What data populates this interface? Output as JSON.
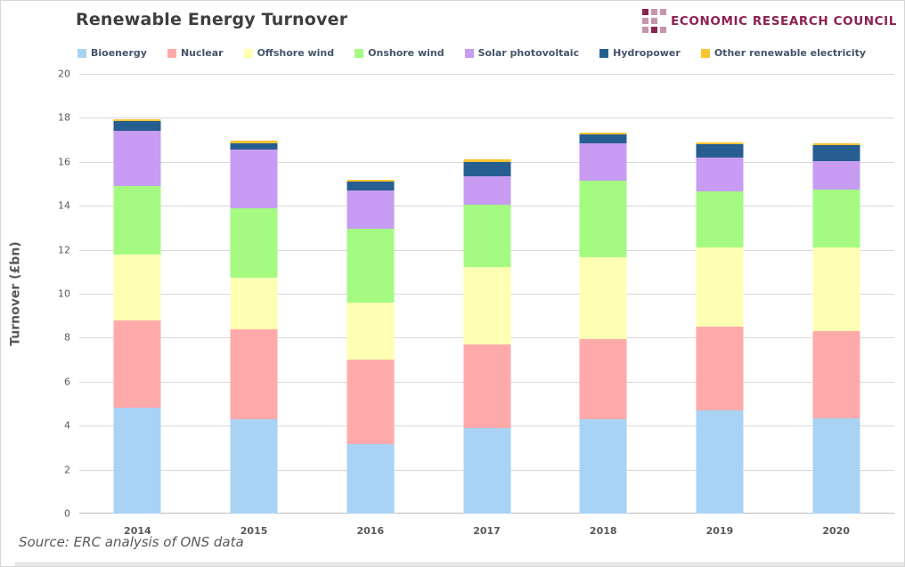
{
  "header": {
    "title": "Renewable Energy Turnover",
    "logo_text": "ECONOMIC RESEARCH COUNCIL"
  },
  "footer": {
    "source": "Source: ERC analysis of ONS data"
  },
  "colors": {
    "grid": "#d9d9d9",
    "axis": "#bfbfbf",
    "title_text": "#3f3f3f",
    "axis_text": "#595959",
    "legend_text": "#44546a",
    "logo_dark": "#8c2251",
    "logo_light": "#c695ab",
    "bottom_strip": "#e9e9e9"
  },
  "chart_data": {
    "type": "bar",
    "stacked": true,
    "title": "Renewable Energy Turnover",
    "xlabel": "",
    "ylabel": "Turnover  (£bn)",
    "ylim": [
      0,
      20
    ],
    "ytick_step": 2,
    "grid": true,
    "legend_position": "top",
    "categories": [
      "2014",
      "2015",
      "2016",
      "2017",
      "2018",
      "2019",
      "2020"
    ],
    "series": [
      {
        "name": "Bioenergy",
        "color": "#a9d3f5",
        "values": [
          4.8,
          4.3,
          3.15,
          3.9,
          4.3,
          4.7,
          4.35
        ]
      },
      {
        "name": "Nuclear",
        "color": "#ffaaaa",
        "values": [
          4.0,
          4.1,
          3.85,
          3.8,
          3.65,
          3.8,
          3.95
        ]
      },
      {
        "name": "Offshore wind",
        "color": "#ffffb3",
        "values": [
          3.0,
          2.35,
          2.6,
          3.5,
          3.7,
          3.6,
          3.8
        ]
      },
      {
        "name": "Onshore wind",
        "color": "#a5fb82",
        "values": [
          3.1,
          3.15,
          3.35,
          2.85,
          3.5,
          2.55,
          2.65
        ]
      },
      {
        "name": "Solar photovoltaic",
        "color": "#c79cf2",
        "values": [
          2.5,
          2.65,
          1.75,
          1.3,
          1.7,
          1.55,
          1.3
        ]
      },
      {
        "name": "Hydropower",
        "color": "#275e91",
        "values": [
          0.45,
          0.3,
          0.4,
          0.65,
          0.4,
          0.6,
          0.7
        ]
      },
      {
        "name": "Other renewable electricity",
        "color": "#f9c431",
        "values": [
          0.1,
          0.1,
          0.1,
          0.1,
          0.1,
          0.1,
          0.1
        ]
      }
    ],
    "totals": [
      17.95,
      16.95,
      15.2,
      16.1,
      17.35,
      16.9,
      16.85
    ]
  }
}
